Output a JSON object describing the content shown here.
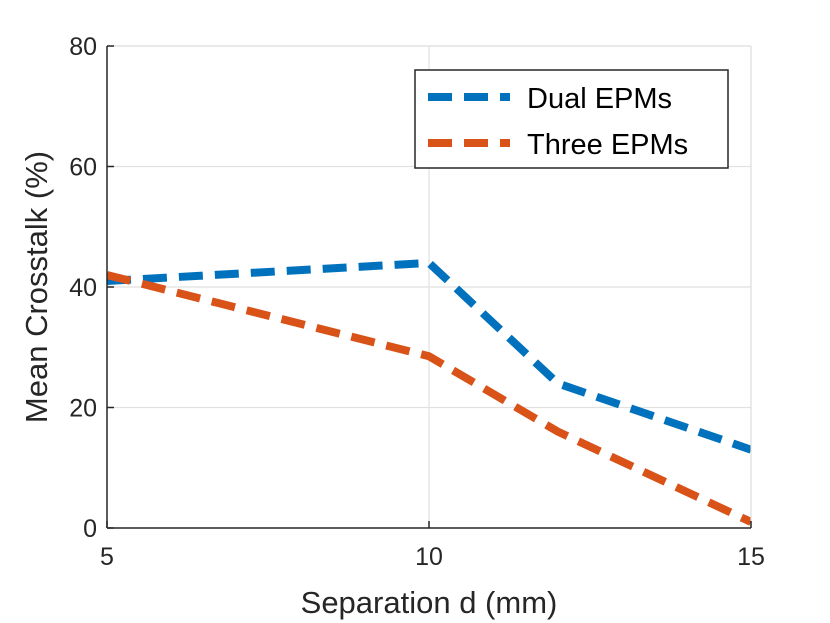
{
  "chart_data": {
    "type": "line",
    "title": "",
    "xlabel": "Separation d (mm)",
    "ylabel": "Mean Crosstalk (%)",
    "xlim": [
      5,
      15
    ],
    "ylim": [
      0,
      80
    ],
    "xticks": [
      5,
      10,
      15
    ],
    "yticks": [
      0,
      20,
      40,
      60,
      80
    ],
    "xtick_labels": [
      "5",
      "10",
      "15"
    ],
    "ytick_labels": [
      "0",
      "20",
      "40",
      "60",
      "80"
    ],
    "grid": true,
    "legend_position": "top-right",
    "series": [
      {
        "name": "Dual EPMs",
        "color": "#0072BD",
        "line_style": "dashed",
        "x": [
          5,
          10,
          12,
          15
        ],
        "y": [
          41,
          44,
          24,
          13
        ]
      },
      {
        "name": "Three EPMs",
        "color": "#D95319",
        "line_style": "dashed",
        "x": [
          5,
          10,
          12,
          15
        ],
        "y": [
          42,
          28.5,
          16,
          1
        ]
      }
    ]
  }
}
